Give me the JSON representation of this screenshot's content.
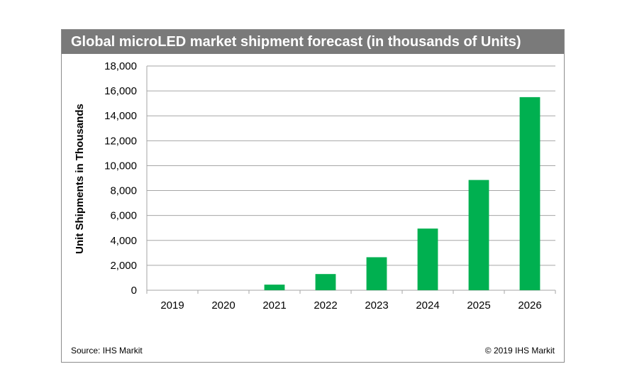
{
  "title": "Global microLED market shipment forecast (in thousands of Units)",
  "source": "Source: IHS Markit",
  "copyright": "© 2019 IHS Markit",
  "colors": {
    "bar": "#00b050",
    "title_bg": "#7a7a7a",
    "grid": "#a6a6a6"
  },
  "chart_data": {
    "type": "bar",
    "title": "Global microLED market shipment forecast (in thousands of Units)",
    "xlabel": "",
    "ylabel": "Unit Shipments in Thousands",
    "categories": [
      "2019",
      "2020",
      "2021",
      "2022",
      "2023",
      "2024",
      "2025",
      "2026"
    ],
    "values": [
      0,
      0,
      450,
      1300,
      2650,
      4950,
      8850,
      15500
    ],
    "ylim": [
      0,
      18000
    ],
    "yticks": [
      0,
      2000,
      4000,
      6000,
      8000,
      10000,
      12000,
      14000,
      16000,
      18000
    ],
    "ytick_labels": [
      "0",
      "2,000",
      "4,000",
      "6,000",
      "8,000",
      "10,000",
      "12,000",
      "14,000",
      "16,000",
      "18,000"
    ],
    "grid": true,
    "legend": "none"
  }
}
